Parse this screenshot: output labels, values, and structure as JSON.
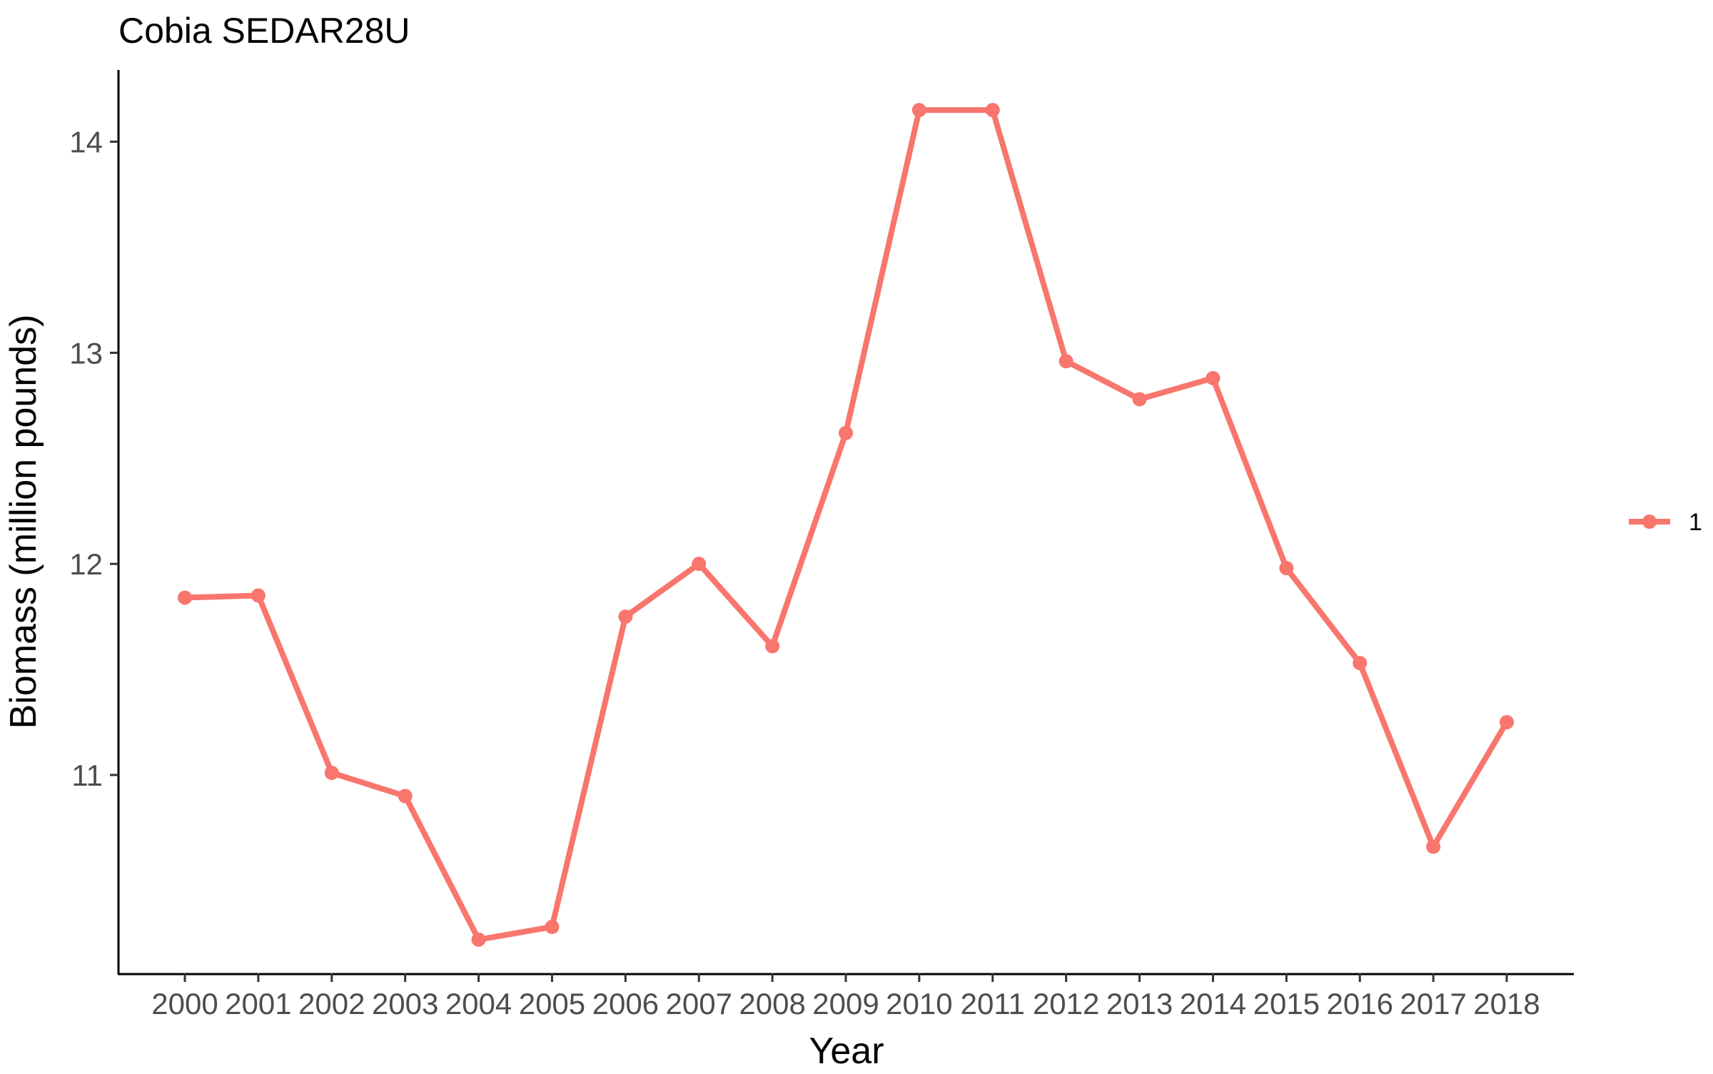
{
  "chart_data": {
    "type": "line",
    "title": "Cobia SEDAR28U",
    "xlabel": "Year",
    "ylabel": "Biomass (million pounds)",
    "categories": [
      "2000",
      "2001",
      "2002",
      "2003",
      "2004",
      "2005",
      "2006",
      "2007",
      "2008",
      "2009",
      "2010",
      "2011",
      "2012",
      "2013",
      "2014",
      "2015",
      "2016",
      "2017",
      "2018"
    ],
    "series": [
      {
        "name": "1",
        "color": "#F8766D",
        "values": [
          11.84,
          11.85,
          11.01,
          10.9,
          10.22,
          10.28,
          11.75,
          12.0,
          11.61,
          12.62,
          14.15,
          14.15,
          12.96,
          12.78,
          12.88,
          11.98,
          11.53,
          10.66,
          11.25
        ]
      }
    ],
    "ylim": [
      10.06,
      14.34
    ],
    "yticks": [
      11,
      12,
      13,
      14
    ],
    "grid": false,
    "legend_position": "right"
  }
}
